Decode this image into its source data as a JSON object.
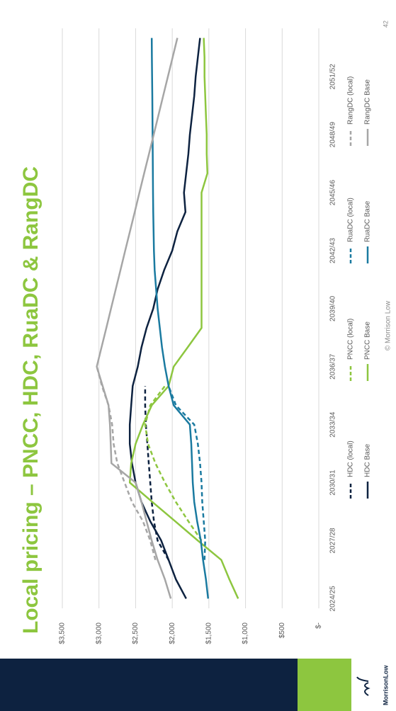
{
  "chart_data": {
    "type": "line",
    "title": "Local pricing – PNCC, HDC, RuaDC & RangDC",
    "categories": [
      "2024/25",
      null,
      null,
      "2027/28",
      null,
      null,
      "2030/31",
      null,
      null,
      "2033/34",
      null,
      null,
      "2036/37",
      null,
      null,
      "2039/40",
      null,
      null,
      "2042/43",
      null,
      null,
      "2045/46",
      null,
      null,
      "2048/49",
      null,
      null,
      "2051/52",
      null,
      null
    ],
    "ylim": [
      0,
      3500
    ],
    "yticks": [
      {
        "value": 0,
        "label": "$-"
      },
      {
        "value": 500,
        "label": "$500"
      },
      {
        "value": 1000,
        "label": "$1,000"
      },
      {
        "value": 1500,
        "label": "$1,500"
      },
      {
        "value": 2000,
        "label": "$2,000"
      },
      {
        "value": 2500,
        "label": "$2,500"
      },
      {
        "value": 3000,
        "label": "$3,000"
      },
      {
        "value": 3500,
        "label": "$3,500"
      }
    ],
    "grid": true,
    "legend": "bottom",
    "series": [
      {
        "name": "HDC (local)",
        "color": "#0d2240",
        "dashed": true,
        "values": [
          null,
          null,
          2050,
          2200,
          2250,
          2280,
          2300,
          2320,
          2340,
          2360,
          2370,
          2370,
          null,
          null,
          null,
          null,
          null,
          null,
          null,
          null,
          null,
          null,
          null,
          null,
          null,
          null,
          null,
          null,
          null,
          null
        ]
      },
      {
        "name": "HDC Base",
        "color": "#0d2240",
        "dashed": false,
        "values": [
          1810,
          1950,
          2050,
          2150,
          2300,
          2420,
          2500,
          2550,
          2580,
          2580,
          2560,
          2540,
          2470,
          2420,
          2350,
          2260,
          2200,
          2110,
          2000,
          1930,
          1820,
          1840,
          1810,
          1780,
          1760,
          1730,
          1700,
          1680,
          1650,
          1620
        ]
      },
      {
        "name": "PNCC (local)",
        "color": "#8dc63f",
        "dashed": true,
        "values": [
          null,
          null,
          null,
          1600,
          1780,
          1950,
          2100,
          2230,
          2330,
          2370,
          2300,
          2100,
          null,
          null,
          null,
          null,
          null,
          null,
          null,
          null,
          null,
          null,
          null,
          null,
          null,
          null,
          null,
          null,
          null,
          null
        ]
      },
      {
        "name": "PNCC Base",
        "color": "#8dc63f",
        "dashed": false,
        "values": [
          1100,
          1220,
          1330,
          1650,
          1960,
          2270,
          2580,
          2560,
          2500,
          2400,
          2280,
          2050,
          1980,
          1790,
          1600,
          1600,
          1600,
          1600,
          1600,
          1600,
          1600,
          1600,
          1520,
          1530,
          1530,
          1540,
          1550,
          1560,
          1560,
          1570
        ]
      },
      {
        "name": "RuaDC (local)",
        "color": "#1a7aa0",
        "dashed": true,
        "values": [
          null,
          null,
          1560,
          1550,
          1570,
          1590,
          1600,
          1620,
          1650,
          1700,
          1950,
          2050,
          null,
          null,
          null,
          null,
          null,
          null,
          null,
          null,
          null,
          null,
          null,
          null,
          null,
          null,
          null,
          null,
          null,
          null
        ]
      },
      {
        "name": "RuaDC Base",
        "color": "#1a7aa0",
        "dashed": false,
        "values": [
          1510,
          1540,
          1580,
          1610,
          1660,
          1700,
          1720,
          1730,
          1740,
          1760,
          1980,
          2050,
          2100,
          2140,
          2170,
          2200,
          2220,
          2240,
          2250,
          2255,
          2260,
          2262,
          2264,
          2266,
          2268,
          2270,
          2272,
          2275,
          2278,
          2280
        ]
      },
      {
        "name": "RangDC (local)",
        "color": "#a6a6a6",
        "dashed": true,
        "values": [
          null,
          null,
          2230,
          2300,
          2400,
          2550,
          2650,
          2750,
          2800,
          2820,
          2870,
          2960,
          3030,
          null,
          null,
          null,
          null,
          null,
          null,
          null,
          null,
          null,
          null,
          null,
          null,
          null,
          null,
          null,
          null,
          null
        ]
      },
      {
        "name": "RangDC Base",
        "color": "#a6a6a6",
        "dashed": false,
        "values": [
          2020,
          2100,
          2200,
          2280,
          2350,
          2420,
          2500,
          2830,
          2840,
          2850,
          2870,
          2950,
          3030,
          2965,
          2900,
          2836,
          2771,
          2706,
          2642,
          2577,
          2512,
          2448,
          2383,
          2318,
          2253,
          2189,
          2124,
          2059,
          1995,
          1930
        ]
      }
    ]
  },
  "footer": "© Morrison Low",
  "page_number": "42",
  "logo": "MorrisonLow"
}
